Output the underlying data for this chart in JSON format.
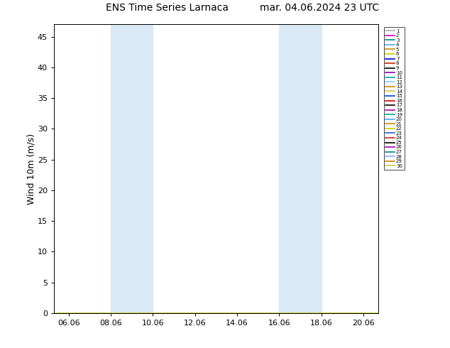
{
  "title_left": "ENS Time Series Larnaca",
  "title_right": "mar. 04.06.2024 23 UTC",
  "ylabel": "Wind 10m (m/s)",
  "ylim": [
    0,
    47
  ],
  "yticks": [
    0,
    5,
    10,
    15,
    20,
    25,
    30,
    35,
    40,
    45
  ],
  "xtick_labels": [
    "06.06",
    "08.06",
    "10.06",
    "12.06",
    "14.06",
    "16.06",
    "18.06",
    "20.06"
  ],
  "xtick_positions": [
    0,
    2,
    4,
    6,
    8,
    10,
    12,
    14
  ],
  "xlim": [
    -0.7,
    14.7
  ],
  "shaded_bands": [
    {
      "start": 2.0,
      "end": 4.0
    },
    {
      "start": 10.0,
      "end": 12.0
    }
  ],
  "shade_color": "#daeaf7",
  "member_colors": [
    "#aaaaaa",
    "#cc00cc",
    "#008888",
    "#44aaff",
    "#cc8800",
    "#cccc00",
    "#0000cc",
    "#cc2200",
    "#000000",
    "#8800cc",
    "#00aaaa",
    "#88ccff",
    "#cc8800",
    "#cccc44",
    "#0044dd",
    "#cc0000",
    "#000000",
    "#aa00aa",
    "#00aa88",
    "#44aaff",
    "#cc8800",
    "#cccc00",
    "#2266cc",
    "#cc2222",
    "#000000",
    "#aa00bb",
    "#008888",
    "#88aaff",
    "#cc8800",
    "#cccc44"
  ],
  "n_members": 30,
  "background_color": "#ffffff"
}
